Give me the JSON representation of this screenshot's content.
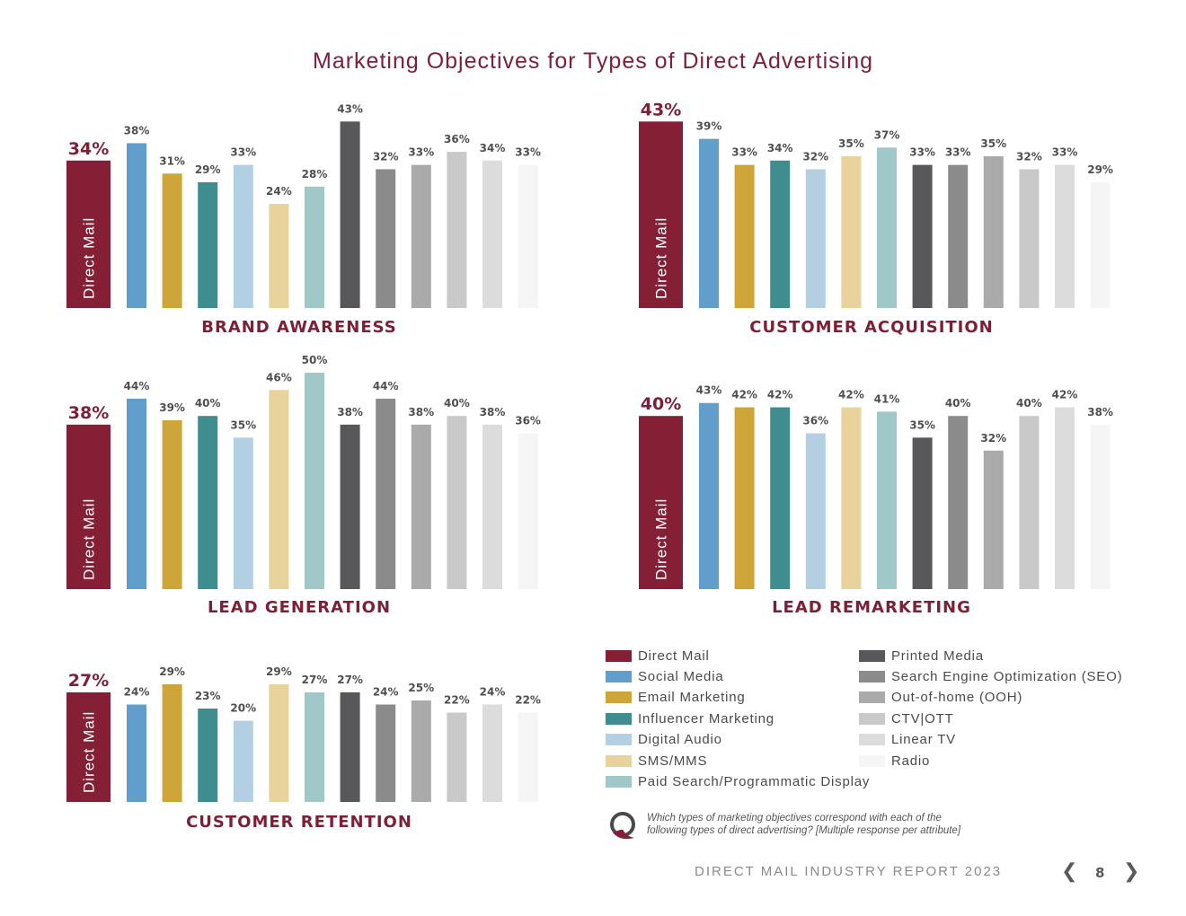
{
  "page_title": "Marketing Objectives for Types of Direct Advertising",
  "colors": {
    "accent": "#7e1f36",
    "series": [
      "#841f36",
      "#629ecb",
      "#cda538",
      "#3f8d8e",
      "#b3d0e2",
      "#e8d39c",
      "#a0c8c8",
      "#58585a",
      "#8b8b8c",
      "#aaaaaa",
      "#c9c9c9",
      "#dcdcdc",
      "#f5f5f5"
    ]
  },
  "chart_data": [
    {
      "type": "bar",
      "title": "BRAND AWARENESS",
      "categories": [
        "Direct Mail",
        "Social Media",
        "Email Marketing",
        "Influencer Marketing",
        "Digital Audio",
        "SMS/MMS",
        "Paid Search/Programmatic Display",
        "Printed Media",
        "Search Engine Optimization (SEO)",
        "Out-of-home (OOH)",
        "CTV|OTT",
        "Linear TV",
        "Radio"
      ],
      "values": [
        34,
        38,
        31,
        29,
        33,
        24,
        28,
        43,
        32,
        33,
        36,
        34,
        33
      ],
      "value_labels": [
        "34%",
        "38%",
        "31%",
        "29%",
        "33%",
        "24%",
        "28%",
        "43%",
        "32%",
        "33%",
        "36%",
        "34%",
        "33%"
      ],
      "highlight_text": "Direct Mail",
      "unit": "%",
      "ylim": [
        0,
        43
      ]
    },
    {
      "type": "bar",
      "title": "CUSTOMER ACQUISITION",
      "categories": [
        "Direct Mail",
        "Social Media",
        "Email Marketing",
        "Influencer Marketing",
        "Digital Audio",
        "SMS/MMS",
        "Paid Search/Programmatic Display",
        "Printed Media",
        "Search Engine Optimization (SEO)",
        "Out-of-home (OOH)",
        "CTV|OTT",
        "Linear TV",
        "Radio"
      ],
      "values": [
        43,
        39,
        33,
        34,
        32,
        35,
        37,
        33,
        33,
        35,
        32,
        33,
        29
      ],
      "value_labels": [
        "43%",
        "39%",
        "33%",
        "34%",
        "32%",
        "35%",
        "37%",
        "33%",
        "33%",
        "35%",
        "32%",
        "33%",
        "29%"
      ],
      "highlight_text": "Direct Mail",
      "unit": "%",
      "ylim": [
        0,
        43
      ]
    },
    {
      "type": "bar",
      "title": "LEAD GENERATION",
      "categories": [
        "Direct Mail",
        "Social Media",
        "Email Marketing",
        "Influencer Marketing",
        "Digital Audio",
        "SMS/MMS",
        "Paid Search/Programmatic Display",
        "Printed Media",
        "Search Engine Optimization (SEO)",
        "Out-of-home (OOH)",
        "CTV|OTT",
        "Linear TV",
        "Radio"
      ],
      "values": [
        38,
        44,
        39,
        40,
        35,
        46,
        50,
        38,
        44,
        38,
        40,
        38,
        36
      ],
      "value_labels": [
        "38%",
        "44%",
        "39%",
        "40%",
        "35%",
        "46%",
        "50%",
        "38%",
        "44%",
        "38%",
        "40%",
        "38%",
        "36%"
      ],
      "highlight_text": "Direct Mail",
      "unit": "%",
      "ylim": [
        0,
        50
      ]
    },
    {
      "type": "bar",
      "title": "LEAD REMARKETING",
      "categories": [
        "Direct Mail",
        "Social Media",
        "Email Marketing",
        "Influencer Marketing",
        "Digital Audio",
        "SMS/MMS",
        "Paid Search/Programmatic Display",
        "Printed Media",
        "Search Engine Optimization (SEO)",
        "Out-of-home (OOH)",
        "CTV|OTT",
        "Linear TV",
        "Radio"
      ],
      "values": [
        40,
        43,
        42,
        42,
        36,
        42,
        41,
        35,
        40,
        32,
        40,
        42,
        38
      ],
      "value_labels": [
        "40%",
        "43%",
        "42%",
        "42%",
        "36%",
        "42%",
        "41%",
        "35%",
        "40%",
        "32%",
        "40%",
        "42%",
        "38%"
      ],
      "highlight_text": "Direct Mail",
      "unit": "%",
      "ylim": [
        0,
        43
      ]
    },
    {
      "type": "bar",
      "title": "CUSTOMER RETENTION",
      "categories": [
        "Direct Mail",
        "Social Media",
        "Email Marketing",
        "Influencer Marketing",
        "Digital Audio",
        "SMS/MMS",
        "Paid Search/Programmatic Display",
        "Printed Media",
        "Search Engine Optimization (SEO)",
        "Out-of-home (OOH)",
        "CTV|OTT",
        "Linear TV",
        "Radio"
      ],
      "values": [
        27,
        24,
        29,
        23,
        20,
        29,
        27,
        27,
        24,
        25,
        22,
        24,
        22
      ],
      "value_labels": [
        "27%",
        "24%",
        "29%",
        "23%",
        "20%",
        "29%",
        "27%",
        "27%",
        "24%",
        "25%",
        "22%",
        "24%",
        "22%"
      ],
      "highlight_text": "Direct Mail",
      "unit": "%",
      "ylim": [
        0,
        29
      ]
    }
  ],
  "legend": {
    "items": [
      {
        "label": "Direct Mail",
        "color": "#841f36"
      },
      {
        "label": "Social Media",
        "color": "#629ecb"
      },
      {
        "label": "Email Marketing",
        "color": "#cda538"
      },
      {
        "label": "Influencer Marketing",
        "color": "#3f8d8e"
      },
      {
        "label": "Digital Audio",
        "color": "#b3d0e2"
      },
      {
        "label": "SMS/MMS",
        "color": "#e8d39c"
      },
      {
        "label": "Paid Search/Programmatic Display",
        "color": "#a0c8c8"
      },
      {
        "label": "Printed Media",
        "color": "#58585a"
      },
      {
        "label": "Search Engine Optimization (SEO)",
        "color": "#8b8b8c"
      },
      {
        "label": "Out-of-home (OOH)",
        "color": "#aaaaaa"
      },
      {
        "label": "CTV|OTT",
        "color": "#c9c9c9"
      },
      {
        "label": "Linear TV",
        "color": "#dcdcdc"
      },
      {
        "label": "Radio",
        "color": "#f5f5f5"
      }
    ]
  },
  "question": {
    "line1": "Which types of marketing objectives correspond with each of the",
    "line2": "following types of direct advertising? [Multiple response per attribute]"
  },
  "footer": {
    "report_title": "DIRECT MAIL INDUSTRY REPORT 2023",
    "page_number": "8",
    "prev_icon": "❮",
    "next_icon": "❯"
  }
}
